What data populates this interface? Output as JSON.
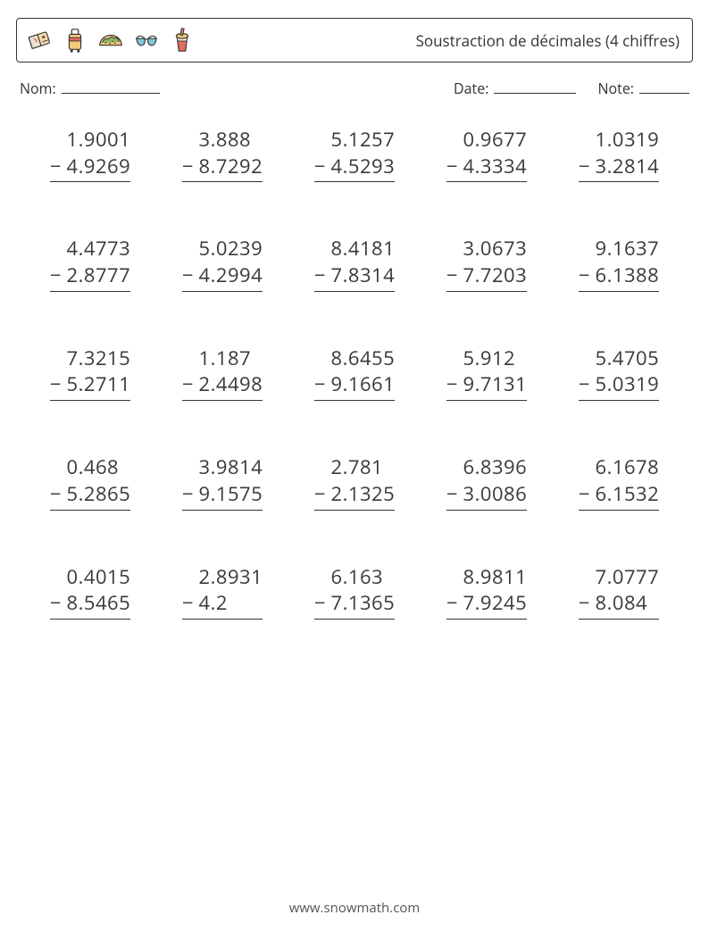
{
  "title": "Soustraction de décimales (4 chiffres)",
  "fields": {
    "name_label": "Nom:",
    "date_label": "Date:",
    "note_label": "Note:",
    "name_line_w": 110,
    "date_line_w": 92,
    "note_line_w": 56
  },
  "operator": "−",
  "problems": [
    {
      "a": "1.9001",
      "b": "4.9269"
    },
    {
      "a": "3.888",
      "b": "8.7292"
    },
    {
      "a": "5.1257",
      "b": "4.5293"
    },
    {
      "a": "0.9677",
      "b": "4.3334"
    },
    {
      "a": "1.0319",
      "b": "3.2814"
    },
    {
      "a": "4.4773",
      "b": "2.8777"
    },
    {
      "a": "5.0239",
      "b": "4.2994"
    },
    {
      "a": "8.4181",
      "b": "7.8314"
    },
    {
      "a": "3.0673",
      "b": "7.7203"
    },
    {
      "a": "9.1637",
      "b": "6.1388"
    },
    {
      "a": "7.3215",
      "b": "5.2711"
    },
    {
      "a": "1.187",
      "b": "2.4498"
    },
    {
      "a": "8.6455",
      "b": "9.1661"
    },
    {
      "a": "5.912",
      "b": "9.7131"
    },
    {
      "a": "5.4705",
      "b": "5.0319"
    },
    {
      "a": "0.468",
      "b": "5.2865"
    },
    {
      "a": "3.9814",
      "b": "9.1575"
    },
    {
      "a": "2.781",
      "b": "2.1325"
    },
    {
      "a": "6.8396",
      "b": "3.0086"
    },
    {
      "a": "6.1678",
      "b": "6.1532"
    },
    {
      "a": "0.4015",
      "b": "8.5465"
    },
    {
      "a": "2.8931",
      "b": "4.2"
    },
    {
      "a": "6.163",
      "b": "7.1365"
    },
    {
      "a": "8.9811",
      "b": "7.9245"
    },
    {
      "a": "7.0777",
      "b": "8.084"
    }
  ],
  "icons": {
    "ticket": {
      "fill": "#f9d9a8",
      "accent": "#e06c5c",
      "stroke": "#333"
    },
    "suitcase": {
      "fill": "#f3c879",
      "accent": "#e06c5c",
      "stroke": "#333"
    },
    "taco": {
      "fill": "#f3c879",
      "accent": "#8fb96a",
      "stroke": "#333"
    },
    "glasses": {
      "fill": "#7fc8d8",
      "stroke": "#333"
    },
    "drink": {
      "fill": "#e06c5c",
      "accent": "#f3c879",
      "stroke": "#333"
    }
  },
  "footer": "www.snowmath.com",
  "colors": {
    "text": "#3a3a3a",
    "border": "#333333",
    "bg": "#ffffff"
  },
  "font_size": {
    "title": 17,
    "labels": 16,
    "numbers": 22,
    "footer": 15
  }
}
